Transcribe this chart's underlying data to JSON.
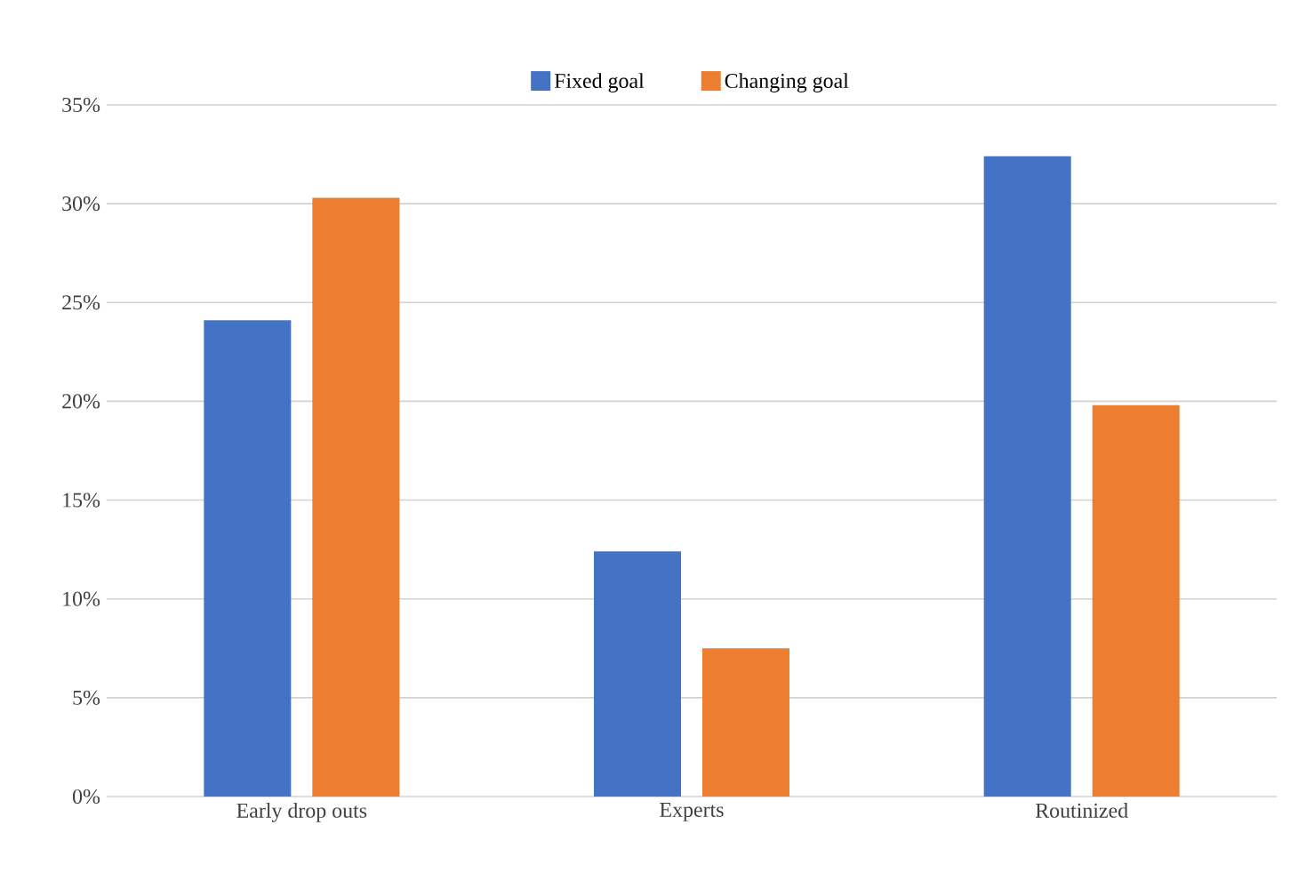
{
  "chart_data": {
    "type": "bar",
    "categories": [
      "Early drop outs",
      "Experts",
      "Routinized"
    ],
    "series": [
      {
        "name": "Fixed goal",
        "color": "#4472c4",
        "values": [
          24.1,
          12.4,
          32.4
        ]
      },
      {
        "name": "Changing goal",
        "color": "#ed7d31",
        "values": [
          30.3,
          7.5,
          19.8
        ]
      }
    ],
    "ylim": [
      0,
      35
    ],
    "yticks": [
      {
        "value": 0,
        "label": "0%"
      },
      {
        "value": 5,
        "label": "5%"
      },
      {
        "value": 10,
        "label": "10%"
      },
      {
        "value": 15,
        "label": "15%"
      },
      {
        "value": 20,
        "label": "20%"
      },
      {
        "value": 25,
        "label": "25%"
      },
      {
        "value": 30,
        "label": "30%"
      },
      {
        "value": 35,
        "label": "35%"
      }
    ],
    "grid": "y",
    "legend": "top"
  }
}
